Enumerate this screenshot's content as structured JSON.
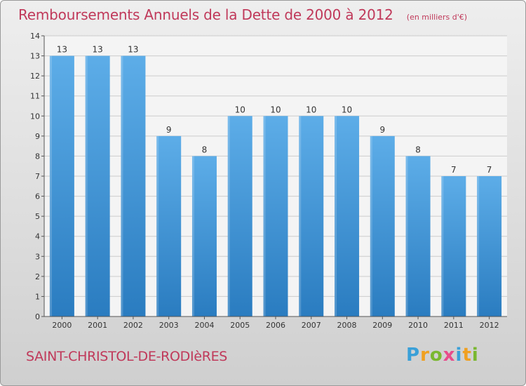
{
  "chart_data": {
    "type": "bar",
    "title": "Remboursements Annuels de la Dette de 2000 à 2012",
    "unit_note": "(en milliers d'€)",
    "categories": [
      "2000",
      "2001",
      "2002",
      "2003",
      "2004",
      "2005",
      "2006",
      "2007",
      "2008",
      "2009",
      "2010",
      "2011",
      "2012"
    ],
    "values": [
      13,
      13,
      13,
      9,
      8,
      10,
      10,
      10,
      10,
      9,
      8,
      7,
      7
    ],
    "ylim": [
      0,
      14
    ],
    "yticks": [
      0,
      1,
      2,
      3,
      4,
      5,
      6,
      7,
      8,
      9,
      10,
      11,
      12,
      13,
      14
    ],
    "xlabel": "",
    "ylabel": "",
    "grid": true
  },
  "commune": "SAINT-CHRISTOL-DE-RODIèRES",
  "logo": {
    "letters": [
      "P",
      "r",
      "o",
      "x",
      "i",
      "t",
      "i"
    ],
    "colors": [
      "#3aa0d8",
      "#f0a020",
      "#7ab830",
      "#e84c8b",
      "#3aa0d8",
      "#f0a020",
      "#7ab830"
    ]
  },
  "colors": {
    "bar_light": "#5dade8",
    "bar_dark": "#2a7cc0",
    "accent": "#c0395a"
  }
}
